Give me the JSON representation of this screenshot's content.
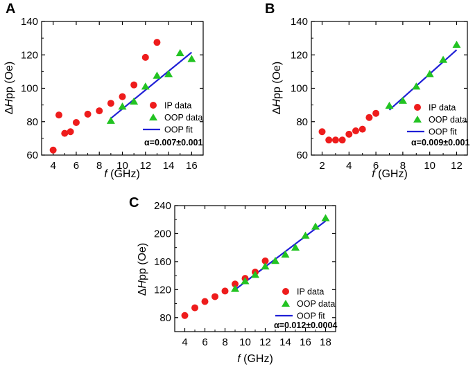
{
  "colors": {
    "ip": "#ee1c1c",
    "oop": "#22c322",
    "fit": "#1f1fd6",
    "axis": "#000000"
  },
  "legend_labels": {
    "ip": "IP data",
    "oop": "OOP data",
    "fit": "OOP fit"
  },
  "chart_data": [
    {
      "id": "A",
      "panel_label": "A",
      "type": "scatter",
      "xlabel_italic": "f",
      "xlabel_rest": " (GHz)",
      "ylabel_prefix": "Δ",
      "ylabel_italic": "H",
      "ylabel_rest": "pp (Oe)",
      "xlim": [
        3,
        17
      ],
      "ylim": [
        60,
        140
      ],
      "xticks": [
        4,
        6,
        8,
        10,
        12,
        14,
        16
      ],
      "yticks": [
        60,
        80,
        100,
        120,
        140
      ],
      "series": [
        {
          "name": "IP data",
          "marker": "circle",
          "x": [
            4,
            4.5,
            5,
            5.5,
            6,
            7,
            8,
            9,
            10,
            11,
            12,
            13
          ],
          "y": [
            63,
            84,
            73,
            74,
            79.5,
            84.5,
            86.5,
            91,
            95,
            102,
            118.5,
            127.5
          ]
        },
        {
          "name": "OOP data",
          "marker": "triangle",
          "x": [
            9,
            10,
            11,
            12,
            13,
            14,
            15,
            16
          ],
          "y": [
            80.5,
            89,
            92,
            101,
            107.5,
            108.5,
            121,
            117.5
          ]
        },
        {
          "name": "OOP fit",
          "marker": "line",
          "x": [
            9,
            16
          ],
          "y": [
            82,
            121.5
          ]
        }
      ],
      "annotation": "α=0.007±0.001"
    },
    {
      "id": "B",
      "panel_label": "B",
      "type": "scatter",
      "xlabel_italic": "f",
      "xlabel_rest": " (GHz)",
      "ylabel_prefix": "Δ",
      "ylabel_italic": "H",
      "ylabel_rest": "pp (Oe)",
      "xlim": [
        1.2,
        12.8
      ],
      "ylim": [
        60,
        140
      ],
      "xticks": [
        2,
        4,
        6,
        8,
        10,
        12
      ],
      "yticks": [
        60,
        80,
        100,
        120,
        140
      ],
      "series": [
        {
          "name": "IP data",
          "marker": "circle",
          "x": [
            2,
            2.5,
            3,
            3.5,
            4,
            4.5,
            5,
            5.5,
            6
          ],
          "y": [
            74,
            69,
            69,
            69,
            72.5,
            74.5,
            75.5,
            82.5,
            85
          ]
        },
        {
          "name": "OOP data",
          "marker": "triangle",
          "x": [
            7,
            8,
            9,
            10,
            11,
            12
          ],
          "y": [
            89.5,
            92.5,
            101,
            108.5,
            117,
            126
          ]
        },
        {
          "name": "OOP fit",
          "marker": "line",
          "x": [
            7,
            12
          ],
          "y": [
            87,
            123
          ]
        }
      ],
      "annotation": "α=0.009±0.001"
    },
    {
      "id": "C",
      "panel_label": "C",
      "type": "scatter",
      "xlabel_italic": "f",
      "xlabel_rest": " (GHz)",
      "ylabel_prefix": "Δ",
      "ylabel_italic": "H",
      "ylabel_rest": "pp (Oe)",
      "xlim": [
        3,
        19
      ],
      "ylim": [
        60,
        240
      ],
      "xticks": [
        4,
        6,
        8,
        10,
        12,
        14,
        16,
        18
      ],
      "yticks": [
        80,
        120,
        160,
        200,
        240
      ],
      "series": [
        {
          "name": "IP data",
          "marker": "circle",
          "x": [
            4,
            5,
            6,
            7,
            8,
            9,
            10,
            11,
            12
          ],
          "y": [
            83,
            94,
            103,
            110,
            118,
            128,
            136,
            145,
            161
          ]
        },
        {
          "name": "OOP data",
          "marker": "triangle",
          "x": [
            9,
            10,
            11,
            12,
            13,
            14,
            15,
            16,
            17,
            18
          ],
          "y": [
            121,
            132,
            141,
            153,
            161,
            170,
            180,
            197,
            210,
            222
          ]
        },
        {
          "name": "OOP fit",
          "marker": "line",
          "x": [
            9,
            18
          ],
          "y": [
            120,
            218
          ]
        }
      ],
      "annotation": "α=0.012±0.0004"
    }
  ]
}
